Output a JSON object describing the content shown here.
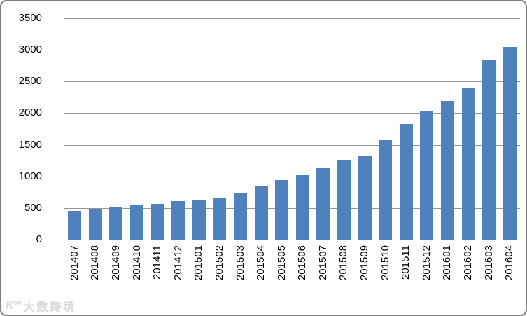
{
  "watermark": {
    "logo": "K°°",
    "text": "大数跨境"
  },
  "colors": {
    "bar": "#4F81BD",
    "gridline": "#969696",
    "axis_line": "#898989",
    "frame_border": "#7f7f7f",
    "label_text": "#000000"
  },
  "chart_data": {
    "type": "bar",
    "title": "",
    "xlabel": "",
    "ylabel": "",
    "categories": [
      "201407",
      "201408",
      "201409",
      "201410",
      "201411",
      "201412",
      "201501",
      "201502",
      "201503",
      "201504",
      "201505",
      "201506",
      "201507",
      "201508",
      "201509",
      "201510",
      "201511",
      "201512",
      "201601",
      "201602",
      "201603",
      "201604"
    ],
    "values": [
      455,
      485,
      525,
      550,
      570,
      610,
      625,
      665,
      745,
      845,
      945,
      1020,
      1130,
      1260,
      1320,
      1570,
      1830,
      2030,
      2190,
      2400,
      2840,
      3050
    ],
    "ylim": [
      0,
      3500
    ],
    "yticks": [
      0,
      500,
      1000,
      1500,
      2000,
      2500,
      3000,
      3500
    ],
    "grid": true,
    "legend": false,
    "bar_color": "#4F81BD"
  }
}
